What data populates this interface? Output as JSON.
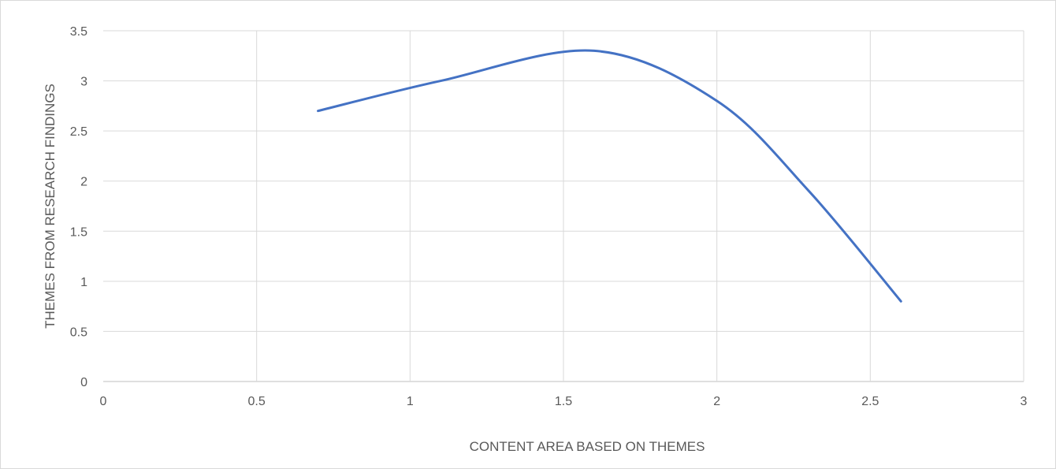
{
  "chart_data": {
    "type": "line",
    "smooth": true,
    "title": "",
    "xlabel": "CONTENT AREA BASED ON THEMES",
    "ylabel": "THEMES FROM RESEARCH FINDINGS",
    "xlim": [
      0,
      3
    ],
    "ylim": [
      0,
      3.5
    ],
    "x_ticks": [
      "0",
      "0.5",
      "1",
      "1.5",
      "2",
      "2.5",
      "3"
    ],
    "y_ticks": [
      "0",
      "0.5",
      "1",
      "1.5",
      "2",
      "2.5",
      "3",
      "3.5"
    ],
    "grid": true,
    "legend": "none",
    "series": [
      {
        "color": "#4472c4",
        "x": [
          0.7,
          1.1,
          1.6,
          2.0,
          2.3,
          2.6
        ],
        "y": [
          2.7,
          3.0,
          3.3,
          2.8,
          1.9,
          0.8
        ]
      }
    ]
  }
}
